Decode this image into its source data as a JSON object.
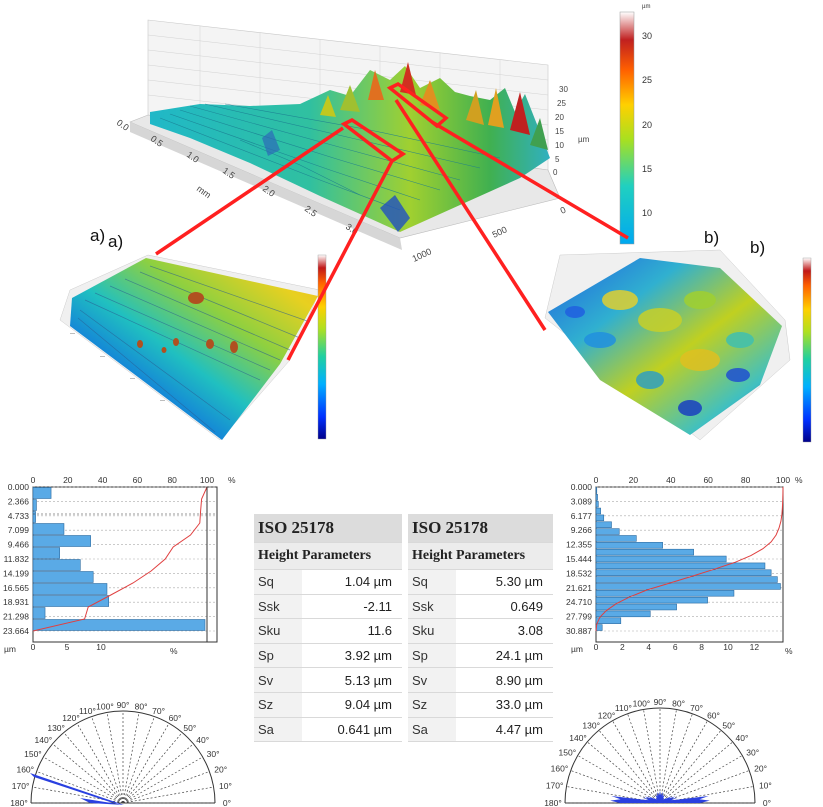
{
  "top_surface": {
    "x_axis_ticks": [
      "0.0",
      "0.5",
      "1.0",
      "1.5",
      "2.0",
      "2.5",
      "3.0"
    ],
    "x_axis_label": "mm",
    "y_axis_ticks": [
      "0",
      "500",
      "1000"
    ],
    "z_axis_ticks": [
      "0",
      "5",
      "10",
      "15",
      "20",
      "25",
      "30"
    ],
    "z_axis_label": "µm",
    "colorbar_ticks": [
      "10",
      "15",
      "20",
      "25",
      "30"
    ],
    "colorbar_unit": "µm"
  },
  "insets": {
    "a_label_1": "a)",
    "a_label_2": "a)",
    "b_label_1": "b)",
    "b_label_2": "b)"
  },
  "left_histogram": {
    "y_ticks": [
      "0.000",
      "2.366",
      "4.733",
      "7.099",
      "9.466",
      "11.832",
      "14.199",
      "16.565",
      "18.931",
      "21.298",
      "23.664"
    ],
    "unit_label": "µm",
    "top_ticks": [
      "0",
      "20",
      "40",
      "60",
      "80",
      "100"
    ],
    "top_unit": "%",
    "bottom_ticks": [
      "0",
      "5",
      "10"
    ],
    "bottom_unit": "%",
    "bars_percent": [
      2.1,
      0.4,
      0.3,
      3.6,
      6.7,
      3.1,
      5.5,
      7.0,
      8.6,
      8.8,
      1.4,
      20
    ]
  },
  "right_histogram": {
    "y_ticks": [
      "0.000",
      "3.089",
      "6.177",
      "9.266",
      "12.355",
      "15.444",
      "18.532",
      "21.621",
      "24.710",
      "27.799",
      "30.887"
    ],
    "unit_label": "µm",
    "top_ticks": [
      "0",
      "20",
      "40",
      "60",
      "80",
      "100"
    ],
    "top_unit": "%",
    "bottom_ticks": [
      "0",
      "2",
      "4",
      "6",
      "8",
      "10",
      "12"
    ],
    "bottom_unit": "%",
    "bars_percent": [
      0.05,
      0.1,
      0.15,
      0.3,
      0.5,
      1.0,
      1.5,
      2.6,
      4.3,
      6.3,
      8.4,
      10.9,
      11.3,
      11.7,
      11.9,
      8.9,
      7.2,
      5.2,
      3.5,
      1.6,
      0.4
    ]
  },
  "table_a": {
    "standard": "ISO 25178",
    "group": "Height Parameters",
    "rows": [
      {
        "name": "Sq",
        "value": "1.04 µm"
      },
      {
        "name": "Ssk",
        "value": "-2.11"
      },
      {
        "name": "Sku",
        "value": "11.6"
      },
      {
        "name": "Sp",
        "value": "3.92 µm"
      },
      {
        "name": "Sv",
        "value": "5.13 µm"
      },
      {
        "name": "Sz",
        "value": "9.04 µm"
      },
      {
        "name": "Sa",
        "value": "0.641 µm"
      }
    ]
  },
  "table_b": {
    "standard": "ISO 25178",
    "group": "Height Parameters",
    "rows": [
      {
        "name": "Sq",
        "value": "5.30 µm"
      },
      {
        "name": "Ssk",
        "value": "0.649"
      },
      {
        "name": "Sku",
        "value": "3.08"
      },
      {
        "name": "Sp",
        "value": "24.1 µm"
      },
      {
        "name": "Sv",
        "value": "8.90 µm"
      },
      {
        "name": "Sz",
        "value": "33.0 µm"
      },
      {
        "name": "Sa",
        "value": "4.47 µm"
      }
    ]
  },
  "polar_labels": [
    "0°",
    "10°",
    "20°",
    "30°",
    "40°",
    "50°",
    "60°",
    "70°",
    "80°",
    "90°",
    "100°",
    "110°",
    "120°",
    "130°",
    "140°",
    "150°",
    "160°",
    "170°",
    "180°"
  ],
  "colors": {
    "highlight": "#ff2020",
    "histogram_bar": "#5aaae6",
    "cumulative_curve": "#e04040",
    "rose": "#2a40e0"
  }
}
